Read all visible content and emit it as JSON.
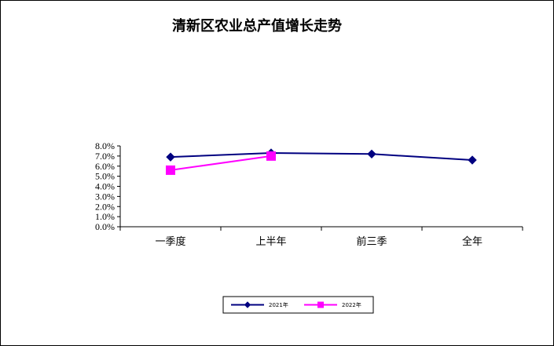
{
  "chart_data": {
    "type": "line",
    "title": "清新区农业总产值增长走势",
    "categories": [
      "一季度",
      "上半年",
      "前三季",
      "全年"
    ],
    "series": [
      {
        "name": "2021年",
        "values": [
          6.9,
          7.3,
          7.2,
          6.6
        ],
        "color": "#000080",
        "marker": "diamond"
      },
      {
        "name": "2022年",
        "values": [
          5.6,
          7.0,
          null,
          null
        ],
        "color": "#ff00ff",
        "marker": "square"
      }
    ],
    "ylim": [
      0,
      8
    ],
    "yticks": [
      "0.0%",
      "1.0%",
      "2.0%",
      "3.0%",
      "4.0%",
      "5.0%",
      "6.0%",
      "7.0%",
      "8.0%"
    ],
    "xlabel": "",
    "ylabel": "",
    "grid": false,
    "legend_position": "bottom"
  }
}
